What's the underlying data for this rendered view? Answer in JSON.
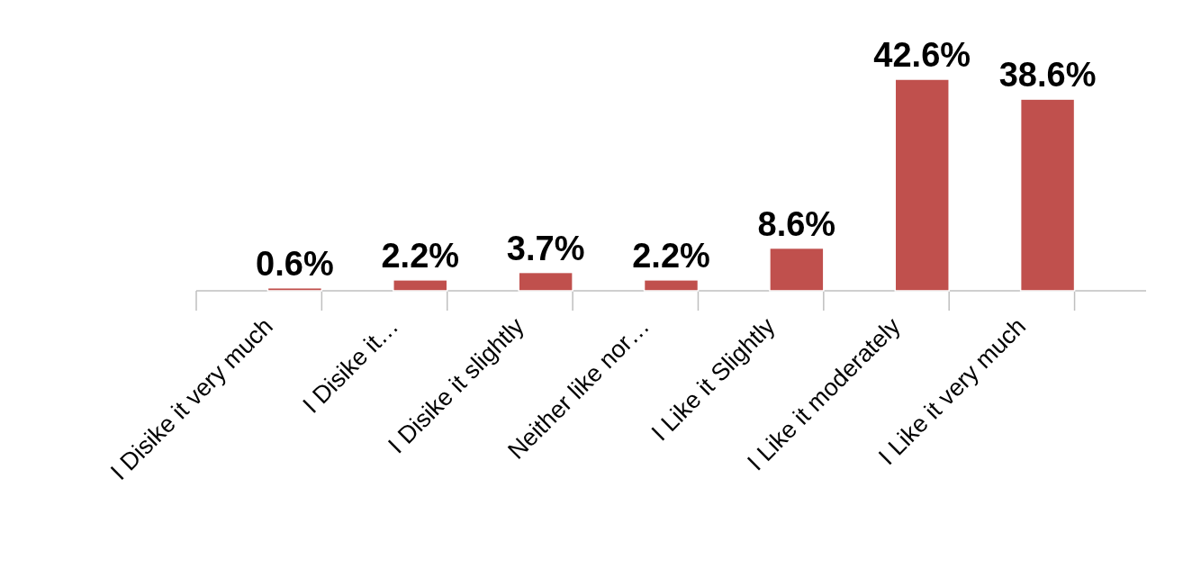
{
  "chart_data": {
    "type": "bar",
    "categories": [
      "I Disike it very much",
      "I Disike it…",
      "I Disike it slightly",
      "Neither like nor…",
      "I Like it Slightly",
      "I Like it moderately",
      "I Like it very much"
    ],
    "values": [
      0.6,
      2.2,
      3.7,
      2.2,
      8.6,
      42.6,
      38.6
    ],
    "value_labels": [
      "0.6%",
      "2.2%",
      "3.7%",
      "2.2%",
      "8.6%",
      "42.6%",
      "38.6%"
    ],
    "color": "#c0504d"
  }
}
